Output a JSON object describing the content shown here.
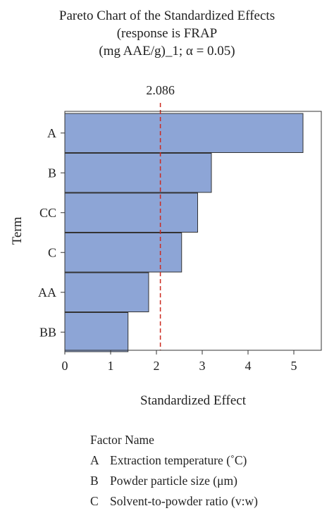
{
  "chart_data": {
    "type": "bar",
    "orientation": "horizontal",
    "title_lines": [
      "Pareto Chart of the Standardized Effects",
      "(response is FRAP",
      "(mg AAE/g)_1; α = 0.05)"
    ],
    "categories": [
      "A",
      "B",
      "CC",
      "C",
      "AA",
      "BB"
    ],
    "values": [
      5.2,
      3.2,
      2.9,
      2.55,
      1.83,
      1.38
    ],
    "reference_line": {
      "value": 2.086,
      "label": "2.086",
      "color": "#cc2a1f"
    },
    "xlabel": "Standardized Effect",
    "ylabel": "Term",
    "xlim": [
      0,
      5.6
    ],
    "xticks": [
      "0",
      "1",
      "2",
      "3",
      "4",
      "5"
    ],
    "bar_color": "#8da5d6",
    "bar_edge_color": "#333333",
    "grid": false
  },
  "legend": {
    "title": "Factor Name",
    "items": [
      {
        "code": "A",
        "name": "Extraction temperature (˚C)"
      },
      {
        "code": "B",
        "name": "Powder particle size (μm)"
      },
      {
        "code": "C",
        "name": "Solvent-to-powder ratio (v:w)"
      }
    ]
  }
}
